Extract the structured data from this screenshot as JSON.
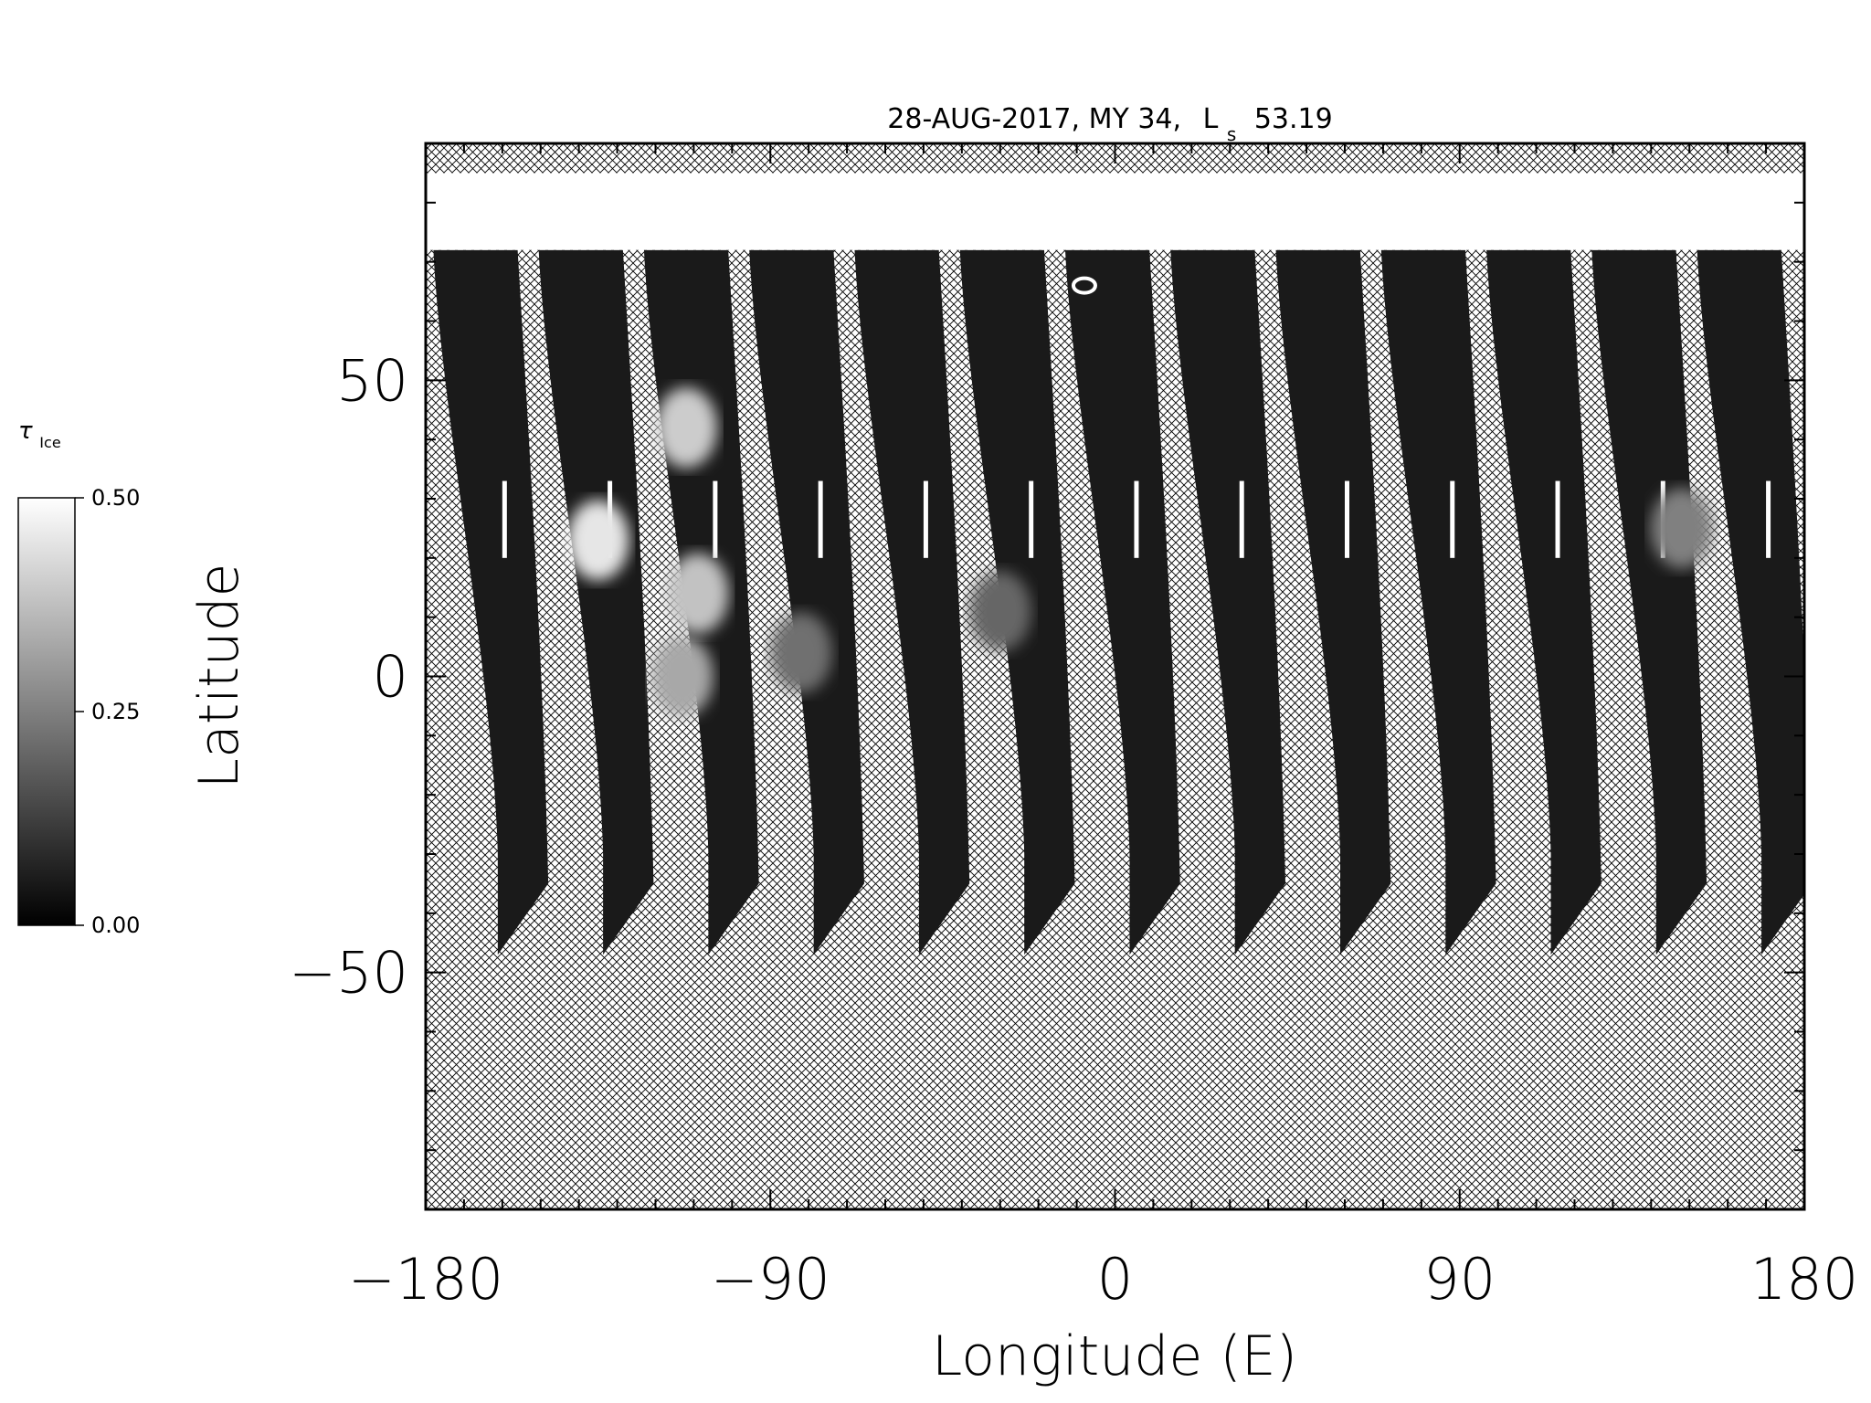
{
  "chart_data": {
    "type": "heatmap",
    "title": "28-AUG-2017, MY 34,",
    "title_ls_symbol": "L",
    "title_ls_subscript": "s",
    "title_ls_value": "53.19",
    "xlabel": "Longitude (E)",
    "ylabel": "Latitude",
    "xlim": [
      -180,
      180
    ],
    "ylim": [
      -90,
      90
    ],
    "xticks": [
      -180,
      -90,
      0,
      90,
      180
    ],
    "xtick_labels": [
      "−180",
      "−90",
      "0",
      "90",
      "180"
    ],
    "yticks": [
      -50,
      0,
      50
    ],
    "ytick_labels": [
      "−50",
      "0",
      "50"
    ],
    "x_minor_step": 10,
    "y_minor_step": 10,
    "colorbar": {
      "label_symbol": "τ",
      "label_subscript": "Ice",
      "range": [
        0,
        0.5
      ],
      "ticks": [
        0,
        0.25,
        0.5
      ],
      "tick_labels": [
        "0.00",
        "0.25",
        "0.50"
      ],
      "colormap": "grayscale"
    },
    "north_cap": {
      "lat_min": 72,
      "lat_max": 85,
      "value": 0.5
    },
    "no_data_pattern": "crosshatch",
    "swaths": {
      "count": 13,
      "first_top_center_lon": -167,
      "spacing_deg": 27.5,
      "top_half_width_deg": 11,
      "bottom_half_width_deg": 6,
      "lat_top": 72,
      "lat_bottom": -47,
      "westward_drift_deg": 13,
      "typical_value": 0.05
    },
    "bright_features": [
      {
        "lon": -135,
        "lat": 23,
        "value": 0.45
      },
      {
        "lon": -112,
        "lat": 42,
        "value": 0.4
      },
      {
        "lon": -109,
        "lat": 14,
        "value": 0.38
      },
      {
        "lon": -113,
        "lat": 0,
        "value": 0.33
      },
      {
        "lon": -82,
        "lat": 4,
        "value": 0.22
      },
      {
        "lon": -30,
        "lat": 11,
        "value": 0.2
      },
      {
        "lon": 148,
        "lat": 25,
        "value": 0.25
      }
    ],
    "bright_ring": {
      "lon": -8,
      "lat": 66
    },
    "colors": {
      "background": "#ffffff",
      "swath_dark": "#1e1e1e",
      "cap": "#f7f7f7",
      "hatch": "#000000"
    }
  }
}
